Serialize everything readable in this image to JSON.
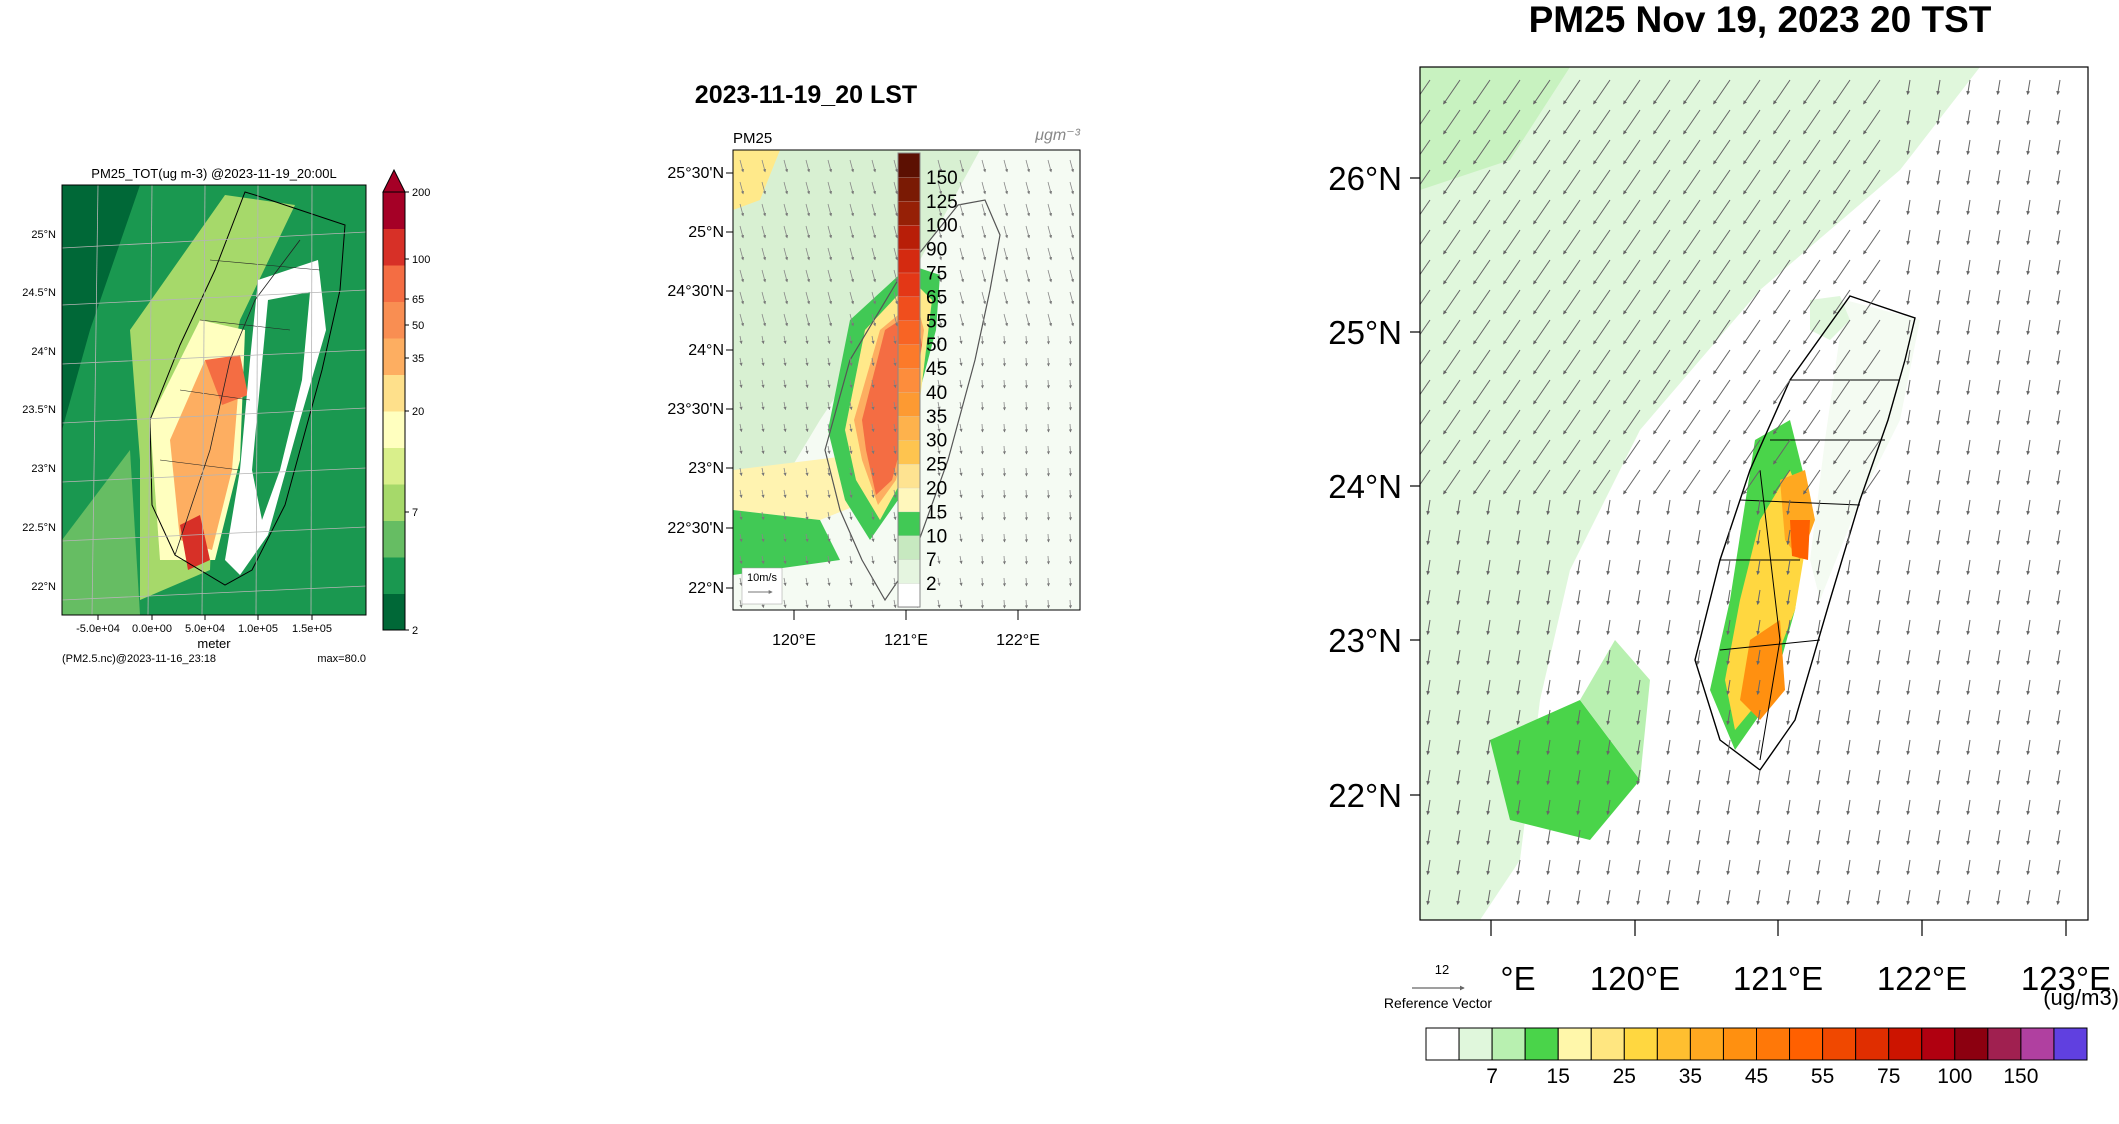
{
  "panel1": {
    "title": "PM25_TOT(ug m-3) @2023-11-19_20:00L",
    "lat_labels": [
      "25°N",
      "24.5°N",
      "24°N",
      "23.5°N",
      "23°N",
      "22.5°N",
      "22°N"
    ],
    "x_ticks": [
      "-5.0e+04",
      "0.0e+00",
      "5.0e+04",
      "1.0e+05",
      "1.5e+05"
    ],
    "xlabel": "meter",
    "footer_left": "(PM2.5.nc)@2023-11-16_23:18",
    "footer_right": "max=80.0",
    "colorbar_labels": [
      "200",
      "100",
      "65",
      "50",
      "35",
      "20",
      "7",
      "2"
    ],
    "colorbar_colors": [
      "#006837",
      "#1a9850",
      "#66bd63",
      "#a6d96a",
      "#d9ef8b",
      "#ffffbf",
      "#fee08b",
      "#fdae61",
      "#f98e52",
      "#f46d43",
      "#d73027",
      "#a50026"
    ]
  },
  "panel2": {
    "title": "2023-11-19_20 LST",
    "variable": "PM25",
    "units_label": "μgm⁻³",
    "lat_labels": [
      "25°30'N",
      "25°N",
      "24°30'N",
      "24°N",
      "23°30'N",
      "23°N",
      "22°30'N",
      "22°N"
    ],
    "lon_labels": [
      "120°E",
      "121°E",
      "122°E"
    ],
    "reference_vector": "10m/s",
    "colorbar_labels": [
      "150",
      "125",
      "100",
      "90",
      "75",
      "65",
      "55",
      "50",
      "45",
      "40",
      "35",
      "30",
      "25",
      "20",
      "15",
      "10",
      "7",
      "2"
    ],
    "colorbar_colors": [
      "#ffffff",
      "#e5f5e0",
      "#c7e9c0",
      "#41c955",
      "#fff7bc",
      "#fee391",
      "#fec44f",
      "#feb24c",
      "#fd9a32",
      "#fd8d3c",
      "#fc7a2a",
      "#f86424",
      "#f04e1d",
      "#e33716",
      "#d42a10",
      "#b81e08",
      "#962006",
      "#7a1a04",
      "#5c1002"
    ]
  },
  "panel3": {
    "title": "PM25 Nov 19, 2023 20 TST",
    "lat_labels": [
      "26°N",
      "25°N",
      "24°N",
      "23°N",
      "22°N"
    ],
    "lon_labels": [
      "°E",
      "120°E",
      "121°E",
      "122°E",
      "123°E"
    ],
    "reference_value": "12",
    "reference_label": "Reference Vector",
    "units_label": "(ug/m3)",
    "colorbar_labels": [
      "7",
      "15",
      "25",
      "35",
      "45",
      "55",
      "75",
      "100",
      "150"
    ],
    "colorbar_colors": [
      "#ffffff",
      "#e0f7dc",
      "#b8f0b0",
      "#4ad44a",
      "#fff7aa",
      "#ffe680",
      "#ffd740",
      "#ffbf30",
      "#ffa820",
      "#ff9010",
      "#ff7808",
      "#ff6000",
      "#f04800",
      "#e02e00",
      "#cc1400",
      "#b00010",
      "#8c0010",
      "#a02050",
      "#b040a0",
      "#6040e0"
    ]
  }
}
